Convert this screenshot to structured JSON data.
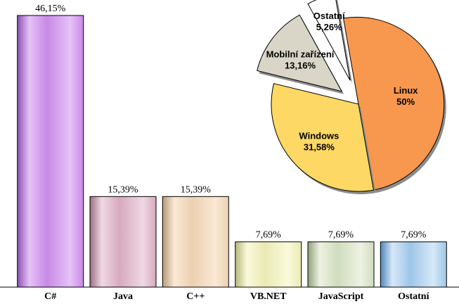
{
  "chart_data": [
    {
      "type": "bar",
      "categories": [
        "C#",
        "Java",
        "C++",
        "VB.NET",
        "JavaScript",
        "Ostatní"
      ],
      "values": [
        46.15,
        15.39,
        15.39,
        7.69,
        7.69,
        7.69
      ],
      "value_labels": [
        "46,15%",
        "15,39%",
        "15,39%",
        "7,69%",
        "7,69%",
        "7,69%"
      ],
      "ylim": [
        0,
        46.15
      ],
      "grid": false,
      "legend": "none",
      "colors": [
        {
          "light": "#e6c2f7",
          "base": "#c88ae6",
          "dark": "#8a4fb3"
        },
        {
          "light": "#f0d8e4",
          "base": "#d6aabe",
          "dark": "#9c6f84"
        },
        {
          "light": "#fae9d6",
          "base": "#ecd0b0",
          "dark": "#b89a78"
        },
        {
          "light": "#fafadc",
          "base": "#e9eab4",
          "dark": "#b6b87c"
        },
        {
          "light": "#eef2e2",
          "base": "#cfdcbd",
          "dark": "#8fa27a"
        },
        {
          "light": "#d6e8f7",
          "base": "#9ec6e8",
          "dark": "#4f86bc"
        }
      ]
    },
    {
      "type": "pie",
      "slices": [
        {
          "label": "Linux",
          "value": 50,
          "value_label": "50%",
          "color": "#f7984e",
          "exploded": false
        },
        {
          "label": "Windows",
          "value": 31.58,
          "value_label": "31,58%",
          "color": "#fdd865",
          "exploded": false
        },
        {
          "label": "Mobilní zařízení",
          "value": 13.16,
          "value_label": "13,16%",
          "color": "#d9d6c8",
          "exploded": true
        },
        {
          "label": "Ostatní",
          "value": 5.26,
          "value_label": "5,26%",
          "color": "#ffffff",
          "exploded": true
        }
      ],
      "legend": "none"
    }
  ]
}
